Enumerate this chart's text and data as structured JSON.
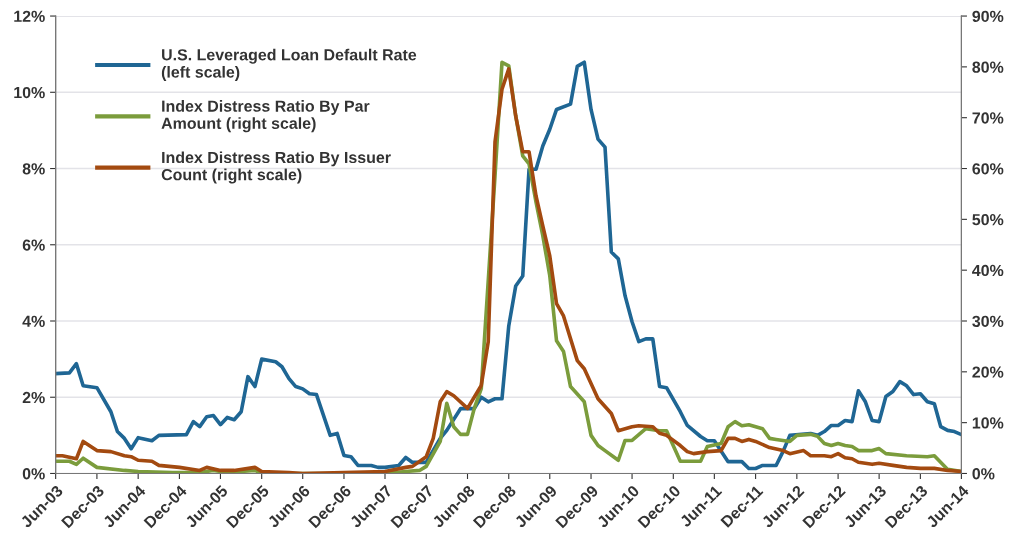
{
  "chart_data": {
    "type": "line",
    "xlim": [
      "2003-06",
      "2014-06"
    ],
    "xticks": [
      {
        "value": "2003-06",
        "label": "Jun-03"
      },
      {
        "value": "2003-12",
        "label": "Dec-03"
      },
      {
        "value": "2004-06",
        "label": "Jun-04"
      },
      {
        "value": "2004-12",
        "label": "Dec-04"
      },
      {
        "value": "2005-06",
        "label": "Jun-05"
      },
      {
        "value": "2005-12",
        "label": "Dec-05"
      },
      {
        "value": "2006-06",
        "label": "Jun-06"
      },
      {
        "value": "2006-12",
        "label": "Dec-06"
      },
      {
        "value": "2007-06",
        "label": "Jun-07"
      },
      {
        "value": "2007-12",
        "label": "Dec-07"
      },
      {
        "value": "2008-06",
        "label": "Jun-08"
      },
      {
        "value": "2008-12",
        "label": "Dec-08"
      },
      {
        "value": "2009-06",
        "label": "Jun-09"
      },
      {
        "value": "2009-12",
        "label": "Dec-09"
      },
      {
        "value": "2010-06",
        "label": "Jun-10"
      },
      {
        "value": "2010-12",
        "label": "Dec-10"
      },
      {
        "value": "2011-06",
        "label": "Jun-11"
      },
      {
        "value": "2011-12",
        "label": "Dec-11"
      },
      {
        "value": "2012-06",
        "label": "Jun-12"
      },
      {
        "value": "2012-12",
        "label": "Dec-12"
      },
      {
        "value": "2013-06",
        "label": "Jun-13"
      },
      {
        "value": "2013-12",
        "label": "Dec-13"
      },
      {
        "value": "2014-06",
        "label": "Jun-14"
      }
    ],
    "ylim": [
      0,
      12
    ],
    "yticks": [
      {
        "value": 0,
        "label": "0%"
      },
      {
        "value": 2,
        "label": "2%"
      },
      {
        "value": 4,
        "label": "4%"
      },
      {
        "value": 6,
        "label": "6%"
      },
      {
        "value": 8,
        "label": "8%"
      },
      {
        "value": 10,
        "label": "10%"
      },
      {
        "value": 12,
        "label": "12%"
      }
    ],
    "y2lim": [
      0,
      90
    ],
    "y2ticks": [
      {
        "value": 0,
        "label": "0%"
      },
      {
        "value": 10,
        "label": "10%"
      },
      {
        "value": 20,
        "label": "20%"
      },
      {
        "value": 30,
        "label": "30%"
      },
      {
        "value": 40,
        "label": "40%"
      },
      {
        "value": 50,
        "label": "50%"
      },
      {
        "value": 60,
        "label": "60%"
      },
      {
        "value": 70,
        "label": "70%"
      },
      {
        "value": 80,
        "label": "80%"
      },
      {
        "value": 90,
        "label": "90%"
      }
    ],
    "grid": "y",
    "legend": "top left",
    "series": [
      {
        "name": "U.S. Leveraged Loan Default Rate\n(left scale)",
        "color": "#1f6694",
        "x": [
          "2003-06",
          "2003-08",
          "2003-09",
          "2003-10",
          "2003-12",
          "2004-02",
          "2004-03",
          "2004-04",
          "2004-05",
          "2004-06",
          "2004-08",
          "2004-09",
          "2005-01",
          "2005-02",
          "2005-03",
          "2005-04",
          "2005-05",
          "2005-06",
          "2005-07",
          "2005-08",
          "2005-09",
          "2005-10",
          "2005-11",
          "2005-12",
          "2006-02",
          "2006-03",
          "2006-04",
          "2006-05",
          "2006-06",
          "2006-07",
          "2006-08",
          "2006-10",
          "2006-11",
          "2006-12",
          "2007-01",
          "2007-02",
          "2007-04",
          "2007-05",
          "2007-06",
          "2007-08",
          "2007-09",
          "2007-10",
          "2007-12",
          "2008-02",
          "2008-03",
          "2008-05",
          "2008-07",
          "2008-08",
          "2008-09",
          "2008-10",
          "2008-11",
          "2008-12",
          "2009-01",
          "2009-02",
          "2009-03",
          "2009-04",
          "2009-05",
          "2009-06",
          "2009-07",
          "2009-09",
          "2009-10",
          "2009-11",
          "2009-12",
          "2010-01",
          "2010-02",
          "2010-03",
          "2010-04",
          "2010-05",
          "2010-06",
          "2010-07",
          "2010-08",
          "2010-09",
          "2010-10",
          "2010-11",
          "2011-01",
          "2011-02",
          "2011-04",
          "2011-05",
          "2011-06",
          "2011-08",
          "2011-10",
          "2011-11",
          "2011-12",
          "2012-01",
          "2012-03",
          "2012-04",
          "2012-05",
          "2012-08",
          "2012-09",
          "2012-10",
          "2012-11",
          "2012-12",
          "2013-01",
          "2013-02",
          "2013-03",
          "2013-04",
          "2013-05",
          "2013-06",
          "2013-07",
          "2013-08",
          "2013-09",
          "2013-10",
          "2013-11",
          "2013-12",
          "2014-01",
          "2014-02",
          "2014-03",
          "2014-04",
          "2014-05",
          "2014-06"
        ],
        "values": [
          2.62,
          2.64,
          2.88,
          2.3,
          2.25,
          1.62,
          1.1,
          0.92,
          0.65,
          0.94,
          0.86,
          1.0,
          1.02,
          1.36,
          1.23,
          1.49,
          1.52,
          1.28,
          1.47,
          1.41,
          1.62,
          2.54,
          2.28,
          3.0,
          2.93,
          2.8,
          2.49,
          2.28,
          2.22,
          2.09,
          2.07,
          1.0,
          1.05,
          0.47,
          0.44,
          0.21,
          0.21,
          0.16,
          0.16,
          0.21,
          0.42,
          0.29,
          0.29,
          0.92,
          1.13,
          1.7,
          1.7,
          2.0,
          1.88,
          1.96,
          1.96,
          3.87,
          4.92,
          5.18,
          7.98,
          7.98,
          8.59,
          9.03,
          9.55,
          9.69,
          10.68,
          10.79,
          9.55,
          8.77,
          8.56,
          5.81,
          5.63,
          4.66,
          3.98,
          3.46,
          3.53,
          3.53,
          2.28,
          2.25,
          1.62,
          1.26,
          0.97,
          0.86,
          0.86,
          0.31,
          0.31,
          0.13,
          0.13,
          0.21,
          0.21,
          0.58,
          1.0,
          1.05,
          1.0,
          1.1,
          1.26,
          1.26,
          1.39,
          1.36,
          2.17,
          1.88,
          1.39,
          1.36,
          2.02,
          2.15,
          2.41,
          2.3,
          2.07,
          2.09,
          1.88,
          1.83,
          1.23,
          1.13,
          1.1,
          1.02
        ]
      },
      {
        "name": "Index Distress Ratio By Par\nAmount (right scale)",
        "color": "#7b9c3c",
        "axis": "y2",
        "x": [
          "2003-06",
          "2003-08",
          "2003-09",
          "2003-10",
          "2003-12",
          "2004-04",
          "2004-06",
          "2004-11",
          "2005-03",
          "2005-05",
          "2005-07",
          "2005-11",
          "2005-12",
          "2007-06",
          "2007-09",
          "2007-11",
          "2007-12",
          "2008-02",
          "2008-03",
          "2008-04",
          "2008-05",
          "2008-06",
          "2008-07",
          "2008-08",
          "2008-10",
          "2008-11",
          "2008-12",
          "2009-01",
          "2009-02",
          "2009-03",
          "2009-04",
          "2009-05",
          "2009-06",
          "2009-07",
          "2009-08",
          "2009-09",
          "2009-11",
          "2009-12",
          "2010-01",
          "2010-02",
          "2010-04",
          "2010-05",
          "2010-06",
          "2010-08",
          "2010-10",
          "2010-11",
          "2011-01",
          "2011-02",
          "2011-04",
          "2011-05",
          "2011-07",
          "2011-08",
          "2011-09",
          "2011-10",
          "2011-11",
          "2012-01",
          "2012-02",
          "2012-03",
          "2012-05",
          "2012-06",
          "2012-08",
          "2012-09",
          "2012-10",
          "2012-11",
          "2012-12",
          "2013-01",
          "2013-02",
          "2013-03",
          "2013-05",
          "2013-06",
          "2013-07",
          "2013-10",
          "2014-01",
          "2014-02",
          "2014-04",
          "2014-06"
        ],
        "values": [
          2.4,
          2.4,
          1.8,
          3.0,
          1.2,
          0.6,
          0.4,
          0.2,
          0.2,
          0.6,
          0.2,
          0.6,
          0,
          0,
          0.4,
          0.6,
          1.4,
          6.3,
          13.8,
          9.2,
          7.7,
          7.7,
          12.8,
          16.7,
          58.5,
          80.9,
          80.2,
          70.3,
          62.5,
          60.9,
          53.4,
          46.8,
          38.9,
          26.1,
          24.0,
          17.1,
          14.1,
          7.5,
          5.5,
          4.5,
          2.6,
          6.5,
          6.5,
          8.8,
          8.4,
          8.4,
          2.4,
          2.4,
          2.4,
          5.3,
          5.9,
          9.2,
          10.2,
          9.4,
          9.6,
          8.8,
          6.9,
          6.7,
          6.3,
          7.5,
          7.7,
          7.3,
          5.9,
          5.5,
          5.9,
          5.5,
          5.3,
          4.5,
          4.5,
          4.9,
          3.9,
          3.5,
          3.3,
          3.5,
          0.8,
          0.4
        ]
      },
      {
        "name": "Index Distress Ratio By Issuer\nCount (right scale)",
        "color": "#a34a10",
        "axis": "y2",
        "x": [
          "2003-06",
          "2003-07",
          "2003-09",
          "2003-10",
          "2003-12",
          "2004-02",
          "2004-04",
          "2004-05",
          "2004-06",
          "2004-08",
          "2004-09",
          "2004-12",
          "2005-03",
          "2005-04",
          "2005-06",
          "2005-08",
          "2005-11",
          "2005-12",
          "2006-04",
          "2006-06",
          "2007-06",
          "2007-09",
          "2007-10",
          "2007-12",
          "2008-01",
          "2008-02",
          "2008-03",
          "2008-04",
          "2008-06",
          "2008-08",
          "2008-09",
          "2008-10",
          "2008-11",
          "2008-12",
          "2009-01",
          "2009-02",
          "2009-03",
          "2009-04",
          "2009-05",
          "2009-06",
          "2009-07",
          "2009-08",
          "2009-10",
          "2009-11",
          "2010-01",
          "2010-03",
          "2010-04",
          "2010-06",
          "2010-07",
          "2010-09",
          "2010-10",
          "2010-11",
          "2011-01",
          "2011-02",
          "2011-03",
          "2011-05",
          "2011-07",
          "2011-08",
          "2011-09",
          "2011-10",
          "2011-11",
          "2011-12",
          "2012-02",
          "2012-04",
          "2012-05",
          "2012-07",
          "2012-08",
          "2012-10",
          "2012-11",
          "2012-12",
          "2013-01",
          "2013-02",
          "2013-03",
          "2013-05",
          "2013-06",
          "2013-08",
          "2013-10",
          "2013-12",
          "2014-02",
          "2014-04",
          "2014-06"
        ],
        "values": [
          3.5,
          3.5,
          2.9,
          6.3,
          4.5,
          4.3,
          3.5,
          3.3,
          2.6,
          2.4,
          1.6,
          1.2,
          0.6,
          1.2,
          0.6,
          0.6,
          1.2,
          0.4,
          0.2,
          0,
          0.4,
          1.2,
          1.4,
          3.3,
          6.9,
          14.1,
          16.1,
          15.3,
          12.8,
          17.3,
          25.9,
          65.2,
          75.6,
          79.6,
          70.3,
          63.3,
          63.3,
          54.6,
          48.7,
          42.8,
          33.4,
          31.0,
          22.2,
          20.6,
          14.7,
          11.8,
          8.4,
          9.2,
          9.4,
          9.2,
          7.9,
          7.5,
          5.5,
          4.3,
          3.9,
          4.3,
          4.5,
          6.9,
          6.9,
          6.3,
          6.7,
          6.3,
          5.1,
          4.5,
          3.9,
          4.5,
          3.5,
          3.5,
          3.3,
          3.9,
          3.1,
          2.9,
          2.2,
          1.8,
          2.0,
          1.6,
          1.2,
          1.0,
          1.0,
          0.6,
          0.4
        ]
      }
    ]
  }
}
